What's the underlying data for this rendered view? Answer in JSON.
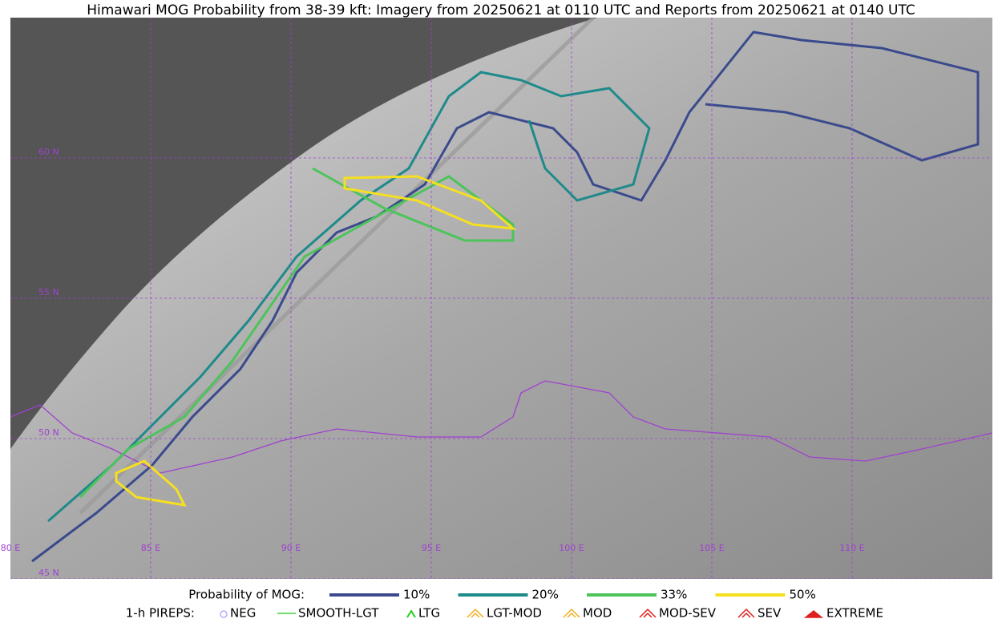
{
  "title": "Himawari MOG Probability from 38-39 kft: Imagery from 20250621 at 0110 UTC and Reports from 20250621 at 0140 UTC",
  "map": {
    "lon_labels": [
      "80 E",
      "85 E",
      "90 E",
      "95 E",
      "100 E",
      "105 E",
      "110 E"
    ],
    "lat_labels": [
      "60 N",
      "55 N",
      "50 N",
      "45 N"
    ],
    "grid_color": "#a040d0"
  },
  "legend": {
    "probability": {
      "label": "Probability of MOG:",
      "items": [
        {
          "label": "10%",
          "color": "#3a4a8c"
        },
        {
          "label": "20%",
          "color": "#1f8a8a"
        },
        {
          "label": "33%",
          "color": "#4cc45a"
        },
        {
          "label": "50%",
          "color": "#f5e020"
        }
      ]
    },
    "pireps": {
      "label": "1-h PIREPS:",
      "items": [
        {
          "label": "NEG",
          "color": "#b0b0ff"
        },
        {
          "label": "SMOOTH-LGT",
          "color": "#40d040"
        },
        {
          "label": "LTG",
          "color": "#20d020"
        },
        {
          "label": "LGT-MOD",
          "color": "#f0b020"
        },
        {
          "label": "MOD",
          "color": "#f0b020"
        },
        {
          "label": "MOD-SEV",
          "color": "#e02020"
        },
        {
          "label": "SEV",
          "color": "#e02020"
        },
        {
          "label": "EXTREME",
          "color": "#e02020"
        }
      ]
    }
  }
}
